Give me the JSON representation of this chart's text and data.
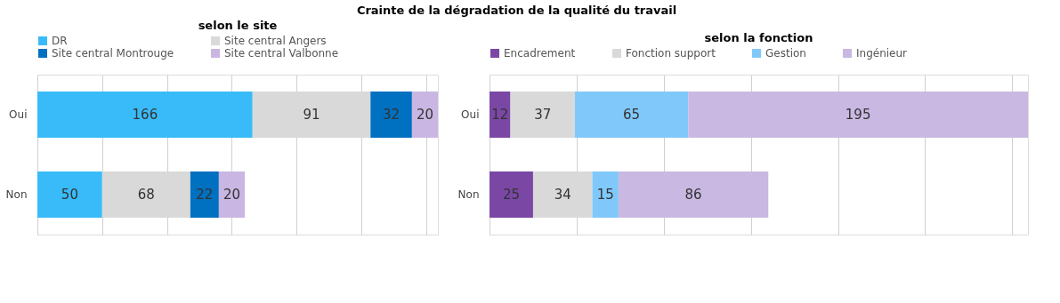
{
  "chart_data": [
    {
      "type": "bar",
      "orientation": "horizontal",
      "stacked": true,
      "data_labels": true,
      "tick_labels": "y",
      "title": "Crainte de la dégradation de la qualité du travail",
      "subtitle": "selon le site",
      "categories": [
        "Oui",
        "Non"
      ],
      "grid": "x",
      "legend": "top left",
      "series": [
        {
          "name": "DR",
          "color": "#38bbf8",
          "values": [
            166,
            50
          ]
        },
        {
          "name": "Site central Angers",
          "color": "#d9d9d9",
          "values": [
            91,
            68
          ]
        },
        {
          "name": "Site central Montrouge",
          "color": "#0070c0",
          "values": [
            32,
            22
          ]
        },
        {
          "name": "Site central Valbonne",
          "color": "#c9b6e2",
          "values": [
            20,
            20
          ]
        }
      ]
    },
    {
      "type": "bar",
      "orientation": "horizontal",
      "stacked": true,
      "data_labels": true,
      "tick_labels": "y",
      "subtitle": "selon la fonction",
      "categories": [
        "Oui",
        "Non"
      ],
      "grid": "x",
      "legend": "top left",
      "series": [
        {
          "name": "Encadrement",
          "color": "#7a47a5",
          "values": [
            12,
            25
          ]
        },
        {
          "name": "Fonction support",
          "color": "#d9d9d9",
          "values": [
            37,
            34
          ]
        },
        {
          "name": "Gestion",
          "color": "#80c8fa",
          "values": [
            65,
            15
          ]
        },
        {
          "name": "Ingénieur",
          "color": "#c9b8e2",
          "values": [
            195,
            86
          ]
        }
      ]
    }
  ]
}
